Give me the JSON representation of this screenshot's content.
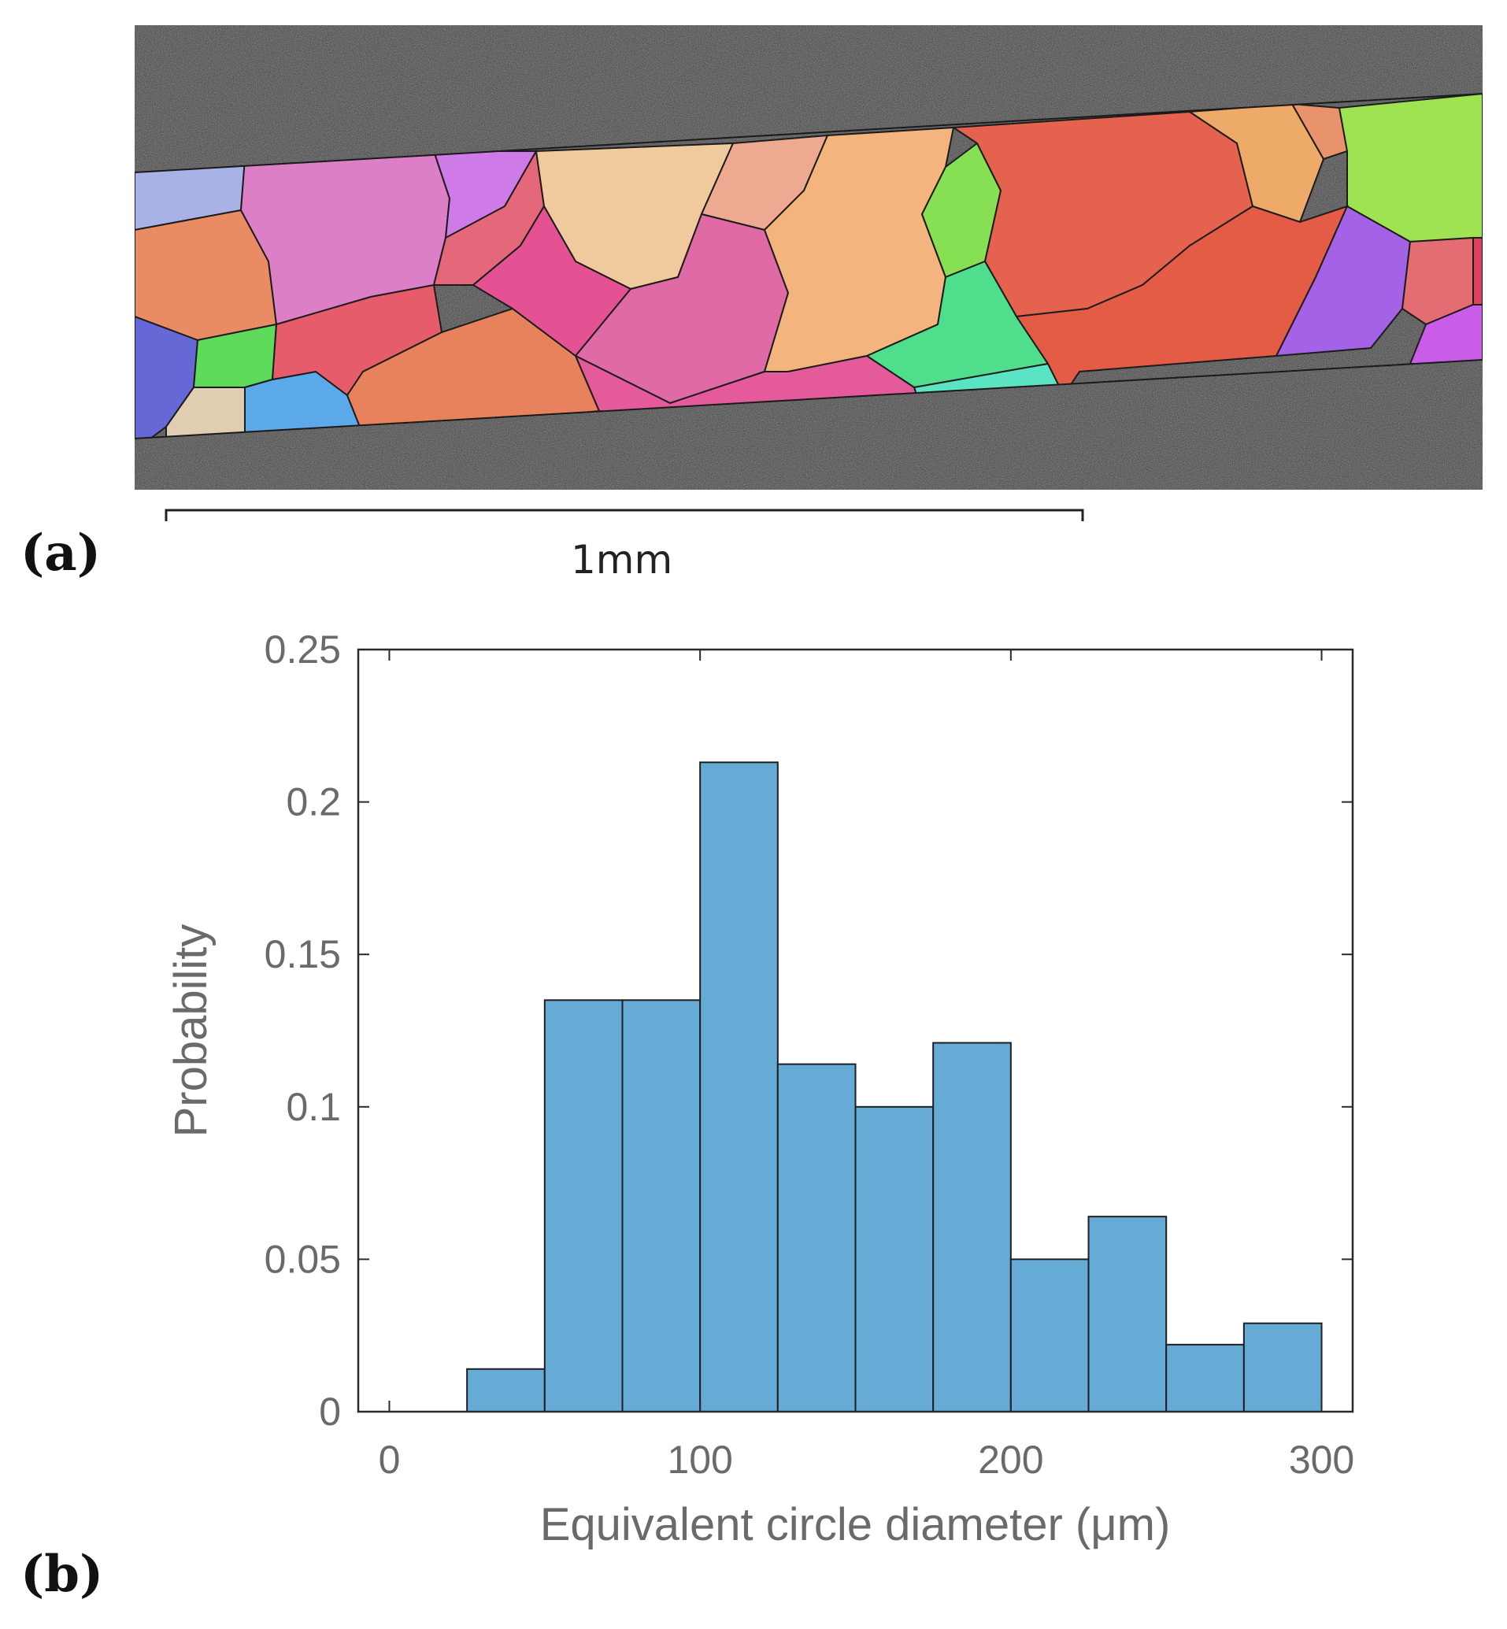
{
  "panel_a": {
    "label": "(a)",
    "scale_bar_label": "1mm"
  },
  "panel_b": {
    "label": "(b)"
  },
  "colors": {
    "bar_fill": "#66aad6",
    "bar_stroke": "#1f1f1f",
    "axis": "#2a2a2a",
    "text": "#6a6a6a"
  },
  "chart_data": {
    "type": "bar",
    "title": "",
    "xlabel": "Equivalent circle diameter (μm)",
    "ylabel": "Probability",
    "xlim": [
      -10,
      310
    ],
    "ylim": [
      0,
      0.25
    ],
    "xticks": [
      0,
      100,
      200,
      300
    ],
    "yticks": [
      0,
      0.05,
      0.1,
      0.15,
      0.2,
      0.25
    ],
    "xtick_labels": [
      "0",
      "100",
      "200",
      "300"
    ],
    "ytick_labels": [
      "0",
      "0.05",
      "0.1",
      "0.15",
      "0.2",
      "0.25"
    ],
    "bin_edges": [
      25,
      50,
      75,
      100,
      125,
      150,
      175,
      200,
      225,
      250,
      275,
      300
    ],
    "values": [
      0.014,
      0.135,
      0.135,
      0.213,
      0.114,
      0.1,
      0.121,
      0.05,
      0.064,
      0.022,
      0.029
    ]
  }
}
